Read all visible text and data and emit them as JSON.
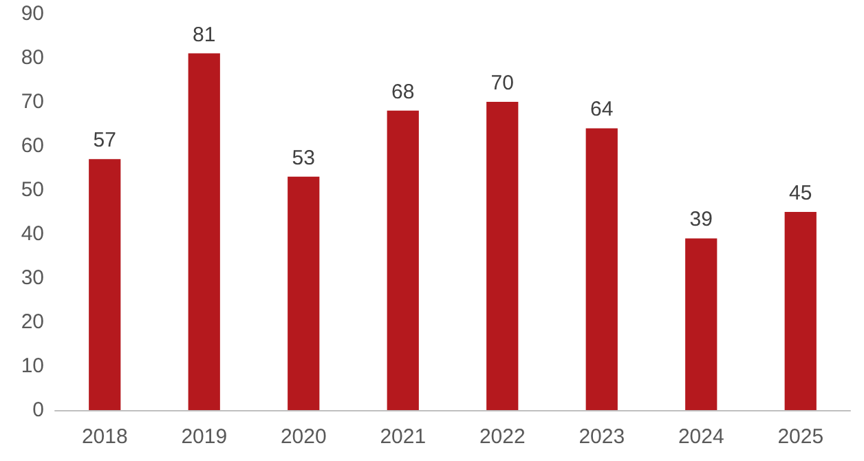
{
  "chart_data": {
    "type": "bar",
    "categories": [
      "2018",
      "2019",
      "2020",
      "2021",
      "2022",
      "2023",
      "2024",
      "2025"
    ],
    "values": [
      57,
      81,
      53,
      68,
      70,
      64,
      39,
      45
    ],
    "color": "#b5191e",
    "ylim": [
      0,
      90
    ],
    "yticks": [
      0,
      10,
      20,
      30,
      40,
      50,
      60,
      70,
      80,
      90
    ],
    "grid": false,
    "data_labels": true
  }
}
